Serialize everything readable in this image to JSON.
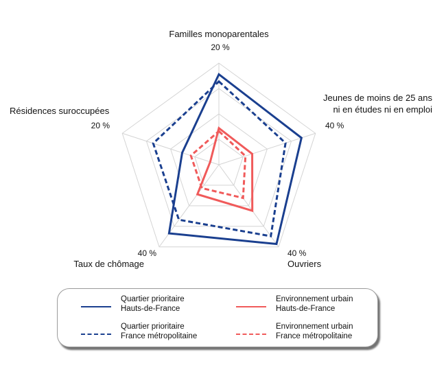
{
  "chart_data": {
    "type": "radar",
    "axes": [
      {
        "label_lines": [
          "Familles monoparentales"
        ],
        "max_label": "20 %",
        "max": 20
      },
      {
        "label_lines": [
          "Jeunes de moins de 25 ans",
          "ni en études ni en emploi"
        ],
        "max_label": "40 %",
        "max": 40
      },
      {
        "label_lines": [
          "Ouvriers"
        ],
        "max_label": "40 %",
        "max": 40
      },
      {
        "label_lines": [
          "Taux de chômage"
        ],
        "max_label": "40 %",
        "max": 40
      },
      {
        "label_lines": [
          "Résidences suroccupées"
        ],
        "max_label": "20 %",
        "max": 20
      }
    ],
    "grid_levels": 4,
    "series": [
      {
        "name_lines": [
          "Quartier prioritaire",
          "Hauts-de-France"
        ],
        "color": "#1a3f8f",
        "dash": false,
        "values": [
          17.8,
          34.2,
          38.6,
          33.4,
          7.6
        ]
      },
      {
        "name_lines": [
          "Quartier prioritaire",
          "France métropolitaine"
        ],
        "color": "#1a3f8f",
        "dash": true,
        "values": [
          16.4,
          27.6,
          34.8,
          26.8,
          13.6
        ]
      },
      {
        "name_lines": [
          "Environnement urbain",
          "Hauts-de-France"
        ],
        "color": "#f05a5a",
        "dash": false,
        "values": [
          7.2,
          13.8,
          22.4,
          14.4,
          1.8
        ]
      },
      {
        "name_lines": [
          "Environnement urbain",
          "France métropolitaine"
        ],
        "color": "#f05a5a",
        "dash": true,
        "values": [
          6.6,
          11.0,
          16.2,
          11.4,
          5.8
        ]
      }
    ]
  }
}
